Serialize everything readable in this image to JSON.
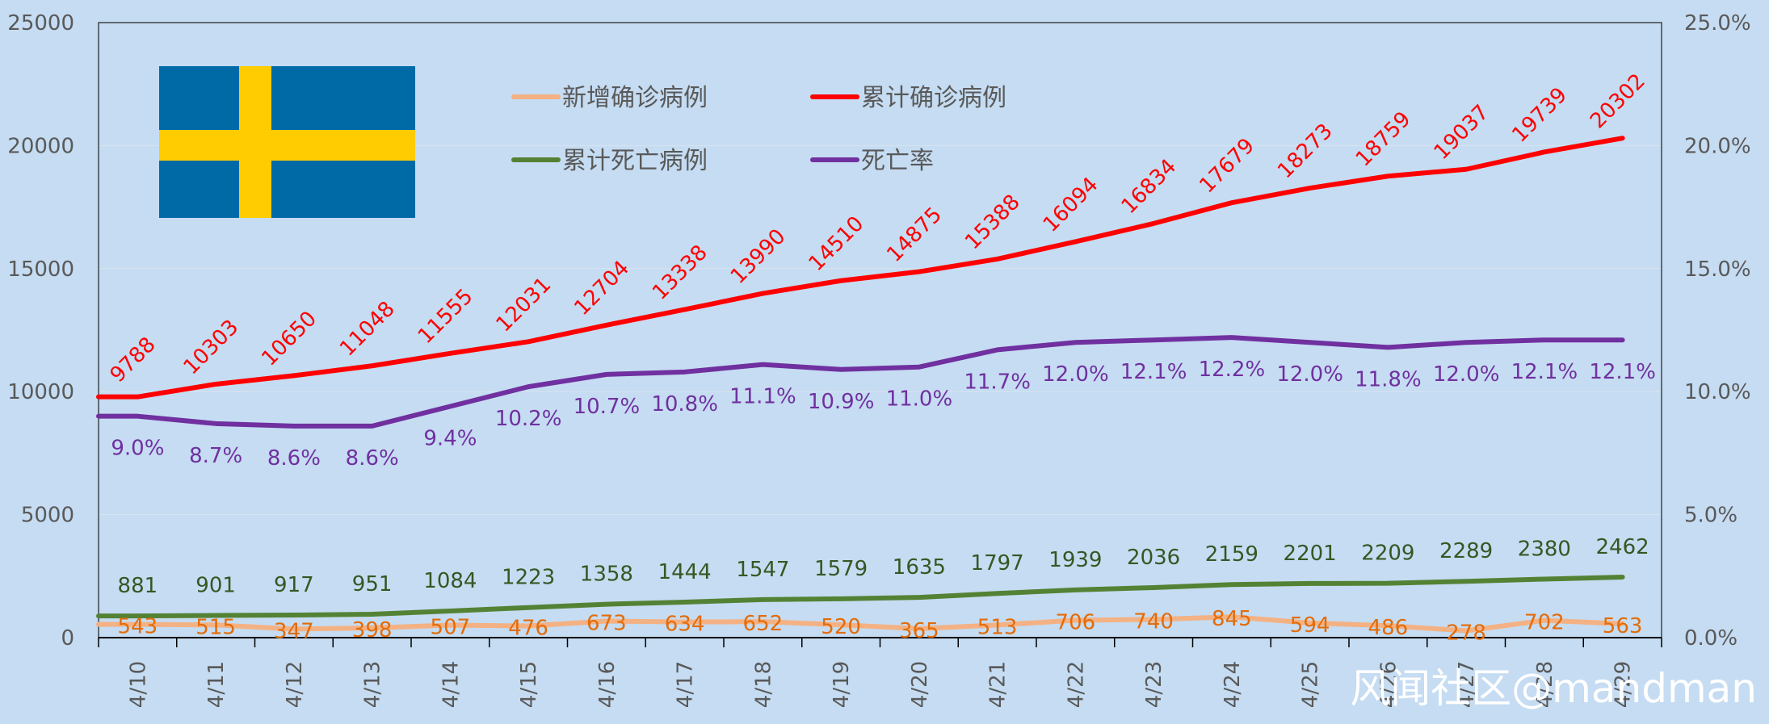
{
  "chart_data": {
    "type": "line",
    "categories": [
      "4/10",
      "4/11",
      "4/12",
      "4/13",
      "4/14",
      "4/15",
      "4/16",
      "4/17",
      "4/18",
      "4/19",
      "4/20",
      "4/21",
      "4/22",
      "4/23",
      "4/24",
      "4/25",
      "4/26",
      "4/27",
      "4/28",
      "4/29"
    ],
    "y_left": {
      "min": 0,
      "max": 25000,
      "ticks": [
        "0",
        "5000",
        "10000",
        "15000",
        "20000",
        "25000"
      ]
    },
    "y_right": {
      "min": 0,
      "max": 25,
      "ticks": [
        "0.0%",
        "5.0%",
        "10.0%",
        "15.0%",
        "20.0%",
        "25.0%"
      ]
    },
    "series": [
      {
        "name": "新增确诊病例",
        "axis": "left",
        "color": "#f4b183",
        "label_color": "#e36c09",
        "values": [
          543,
          515,
          347,
          398,
          507,
          476,
          673,
          634,
          652,
          520,
          365,
          513,
          706,
          740,
          845,
          594,
          486,
          278,
          702,
          563
        ],
        "labels": [
          "543",
          "515",
          "347",
          "398",
          "507",
          "476",
          "673",
          "634",
          "652",
          "520",
          "365",
          "513",
          "706",
          "740",
          "845",
          "594",
          "486",
          "278",
          "702",
          "563"
        ]
      },
      {
        "name": "累计确诊病例",
        "axis": "left",
        "color": "#ff0000",
        "label_color": "#ff0000",
        "values": [
          9788,
          10303,
          10650,
          11048,
          11555,
          12031,
          12704,
          13338,
          13990,
          14510,
          14875,
          15388,
          16094,
          16834,
          17679,
          18273,
          18759,
          19037,
          19739,
          20302
        ],
        "labels": [
          "9788",
          "10303",
          "10650",
          "11048",
          "11555",
          "12031",
          "12704",
          "13338",
          "13990",
          "14510",
          "14875",
          "15388",
          "16094",
          "16834",
          "17679",
          "18273",
          "18759",
          "19037",
          "19739",
          "20302"
        ]
      },
      {
        "name": "累计死亡病例",
        "axis": "left",
        "color": "#548235",
        "label_color": "#375623",
        "values": [
          881,
          901,
          917,
          951,
          1084,
          1223,
          1358,
          1444,
          1547,
          1579,
          1635,
          1797,
          1939,
          2036,
          2159,
          2201,
          2209,
          2289,
          2380,
          2462
        ],
        "labels": [
          "881",
          "901",
          "917",
          "951",
          "1084",
          "1223",
          "1358",
          "1444",
          "1547",
          "1579",
          "1635",
          "1797",
          "1939",
          "2036",
          "2159",
          "2201",
          "2209",
          "2289",
          "2380",
          "2462"
        ]
      },
      {
        "name": "死亡率",
        "axis": "right",
        "color": "#7030a0",
        "label_color": "#7030a0",
        "values": [
          9.0,
          8.7,
          8.6,
          8.6,
          9.4,
          10.2,
          10.7,
          10.8,
          11.1,
          10.9,
          11.0,
          11.7,
          12.0,
          12.1,
          12.2,
          12.0,
          11.8,
          12.0,
          12.1,
          12.1
        ],
        "labels": [
          "9.0%",
          "8.7%",
          "8.6%",
          "8.6%",
          "9.4%",
          "10.2%",
          "10.7%",
          "10.8%",
          "11.1%",
          "10.9%",
          "11.0%",
          "11.7%",
          "12.0%",
          "12.1%",
          "12.2%",
          "12.0%",
          "11.8%",
          "12.0%",
          "12.1%",
          "12.1%"
        ]
      }
    ],
    "legend": [
      "新增确诊病例",
      "累计确诊病例",
      "累计死亡病例",
      "死亡率"
    ],
    "colors": {
      "background": "#c5dcf2",
      "axis": "#000000",
      "flag_blue": "#006aa7",
      "flag_yellow": "#fecc00"
    }
  },
  "flag": {
    "country": "Sweden"
  },
  "watermark": "风闻社区@mandman"
}
